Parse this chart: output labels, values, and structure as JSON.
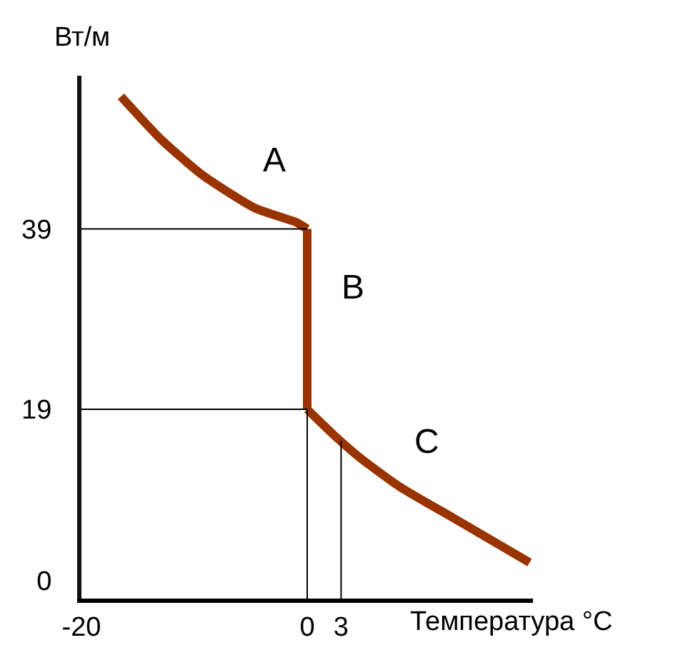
{
  "chart_data": {
    "type": "line",
    "xlabel": "Температура °C",
    "ylabel": "Вт/м",
    "xlim": [
      -20,
      20
    ],
    "ylim": [
      -2,
      56
    ],
    "xticks": [
      -20,
      0,
      3
    ],
    "yticks": [
      0,
      19,
      39
    ],
    "legend": false,
    "marker": "none",
    "line_style": "solid",
    "series": [
      {
        "name": "A",
        "color": "#993300",
        "x": [
          -16.5,
          -13,
          -9.3,
          -4.6,
          -0.9,
          0
        ],
        "values": [
          53.7,
          49,
          45,
          41.3,
          39.7,
          39
        ]
      },
      {
        "name": "B",
        "color": "#993300",
        "x": [
          0,
          0
        ],
        "values": [
          39,
          19
        ]
      },
      {
        "name": "C",
        "color": "#993300",
        "x": [
          0,
          2.4,
          4.7,
          8.2,
          13,
          19.7
        ],
        "values": [
          19,
          16.1,
          13.6,
          10.4,
          6.9,
          2
        ]
      },
      {
        "color": "#000000",
        "x": [
          -20,
          0
        ],
        "values": [
          39,
          39
        ]
      },
      {
        "color": "#000000",
        "x": [
          -20,
          0
        ],
        "values": [
          19,
          19
        ]
      },
      {
        "color": "#000000",
        "x": [
          0,
          0
        ],
        "values": [
          -2,
          19
        ]
      },
      {
        "color": "#000000",
        "x": [
          3,
          3
        ],
        "values": [
          -2,
          15.5
        ]
      }
    ]
  }
}
